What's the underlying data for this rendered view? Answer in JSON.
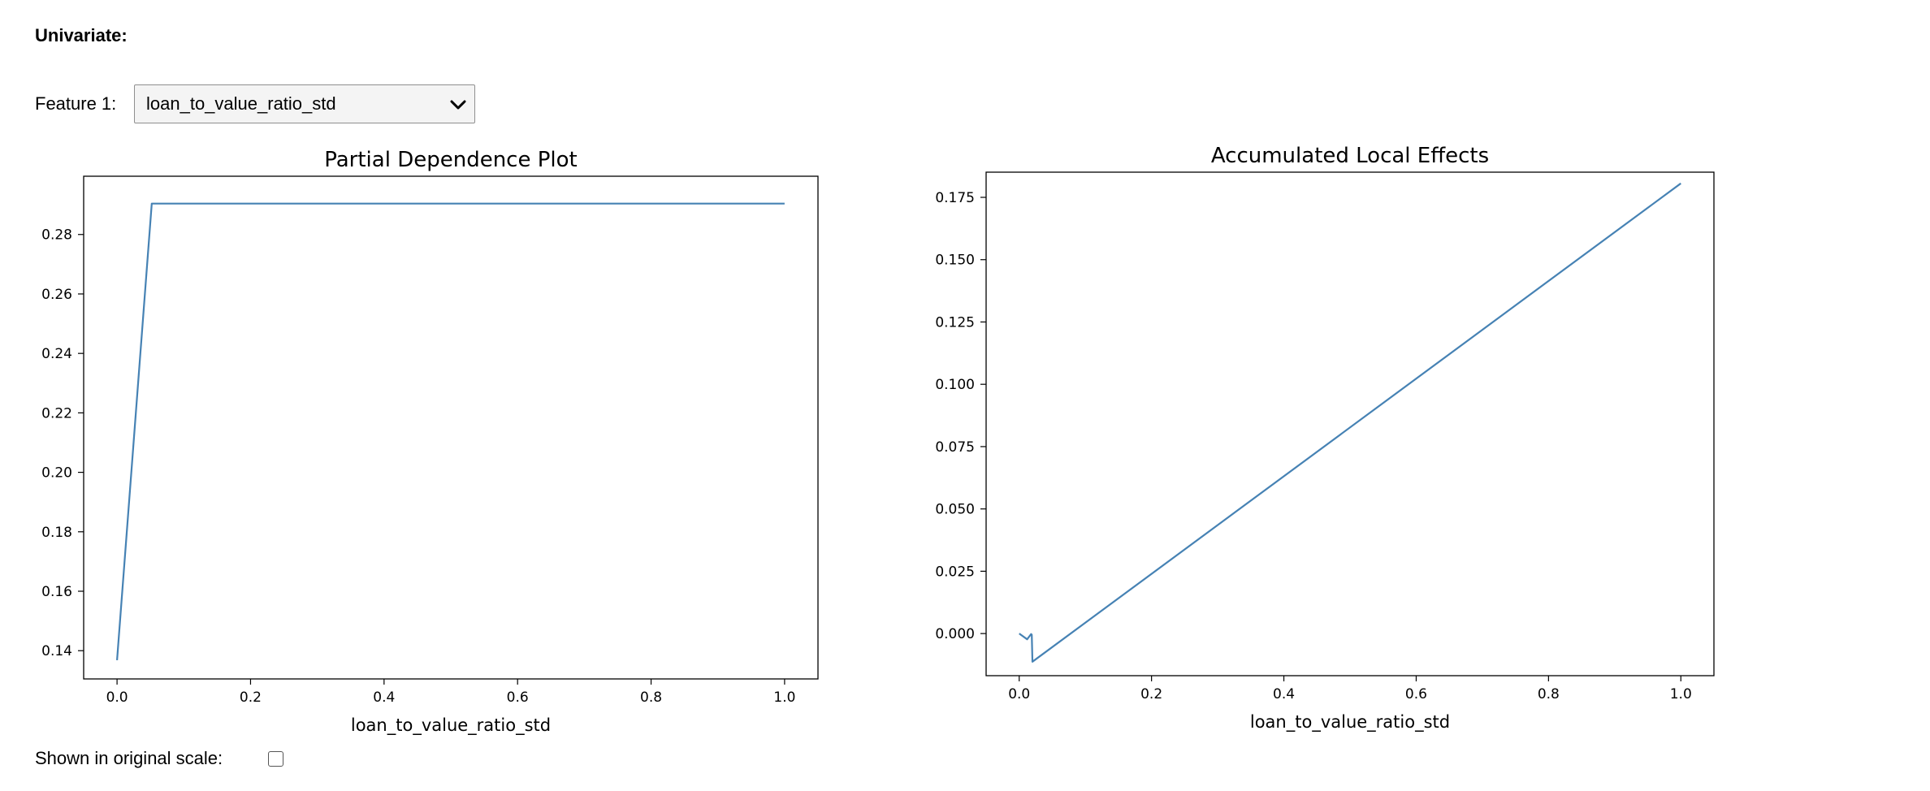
{
  "header": {
    "title": "Univariate:"
  },
  "feature_selector": {
    "label": "Feature 1:",
    "selected": "loan_to_value_ratio_std"
  },
  "scale_toggle": {
    "label": "Shown in original scale:",
    "checked": false
  },
  "colors": {
    "line": "#4682b4",
    "axis": "#000000"
  },
  "chart_data": [
    {
      "type": "line",
      "title": "Partial Dependence Plot",
      "xlabel": "loan_to_value_ratio_std",
      "ylabel": "",
      "xlim": [
        -0.05,
        1.05
      ],
      "ylim": [
        0.1305,
        0.2996
      ],
      "xticks": [
        0.0,
        0.2,
        0.4,
        0.6,
        0.8,
        1.0
      ],
      "xtick_labels": [
        "0.0",
        "0.2",
        "0.4",
        "0.6",
        "0.8",
        "1.0"
      ],
      "yticks": [
        0.14,
        0.16,
        0.18,
        0.2,
        0.22,
        0.24,
        0.26,
        0.28
      ],
      "ytick_labels": [
        "0.14",
        "0.16",
        "0.18",
        "0.20",
        "0.22",
        "0.24",
        "0.26",
        "0.28"
      ],
      "grid": false,
      "series": [
        {
          "x": [
            0.0,
            0.052,
            0.1,
            0.2,
            0.4,
            0.6,
            0.8,
            1.0
          ],
          "y": [
            0.1368,
            0.2904,
            0.2904,
            0.2904,
            0.2904,
            0.2904,
            0.2904,
            0.2904
          ]
        }
      ]
    },
    {
      "type": "line",
      "title": "Accumulated Local Effects",
      "xlabel": "loan_to_value_ratio_std",
      "ylabel": "",
      "xlim": [
        -0.05,
        1.05
      ],
      "ylim": [
        -0.0169,
        0.1851
      ],
      "xticks": [
        0.0,
        0.2,
        0.4,
        0.6,
        0.8,
        1.0
      ],
      "xtick_labels": [
        "0.0",
        "0.2",
        "0.4",
        "0.6",
        "0.8",
        "1.0"
      ],
      "yticks": [
        0.0,
        0.025,
        0.05,
        0.075,
        0.1,
        0.125,
        0.15,
        0.175
      ],
      "ytick_labels": [
        "0.000",
        "0.025",
        "0.050",
        "0.075",
        "0.100",
        "0.125",
        "0.150",
        "0.175"
      ],
      "grid": false,
      "series": [
        {
          "x": [
            0.0,
            0.012,
            0.018,
            0.019,
            0.02,
            1.0
          ],
          "y": [
            0.0,
            -0.0023,
            -0.0002,
            -0.0005,
            -0.0113,
            0.1806
          ]
        }
      ]
    }
  ]
}
